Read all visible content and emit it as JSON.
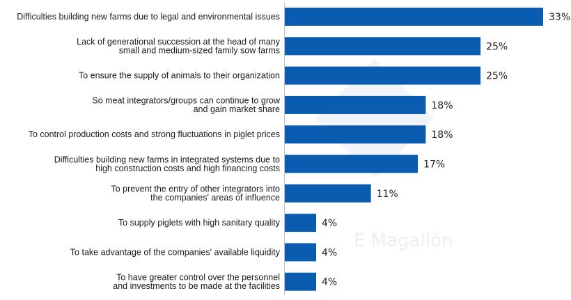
{
  "chart_data": {
    "type": "bar",
    "orientation": "horizontal",
    "categories": [
      [
        "Difficulties building new farms due to legal and environmental issues"
      ],
      [
        "Lack of generational succession at the head of many",
        "small and medium-sized family sow farms"
      ],
      [
        "To ensure the supply of animals to their organization"
      ],
      [
        "So meat integrators/groups can continue to grow",
        "and gain market share "
      ],
      [
        "To control production costs and strong fluctuations in piglet prices"
      ],
      [
        "Difficulties building new farms in integrated systems due to",
        "high construction costs and high financing costs "
      ],
      [
        "To prevent the entry of other integrators into",
        "the companies' areas of influence"
      ],
      [
        "To supply piglets with high sanitary quality"
      ],
      [
        "To take advantage of the companies' available liquidity"
      ],
      [
        "To have greater control over the personnel",
        "and investments to be made at the facilities"
      ]
    ],
    "values": [
      33,
      25,
      25,
      18,
      18,
      17,
      11,
      4,
      4,
      4
    ],
    "value_labels": [
      "33%",
      "25%",
      "25%",
      "18%",
      "18%",
      "17%",
      "11%",
      "4%",
      "4%",
      "4%"
    ],
    "xlim": [
      0,
      33
    ],
    "bar_color": "#0a5cb0",
    "watermark": "E Magallón"
  }
}
